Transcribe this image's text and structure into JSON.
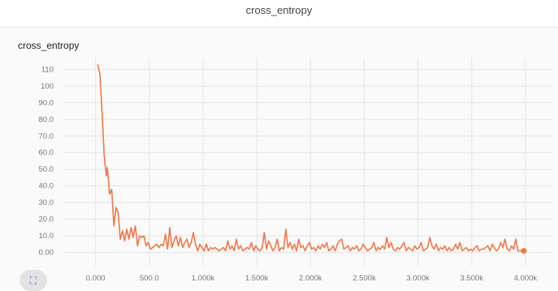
{
  "header": {
    "title": "cross_entropy"
  },
  "card": {
    "title": "cross_entropy",
    "expand_icon": "fullscreen-icon"
  },
  "chart_data": {
    "type": "line",
    "title": "cross_entropy",
    "xlabel": "",
    "ylabel": "",
    "xlim": [
      -300,
      4250
    ],
    "ylim": [
      -8,
      117
    ],
    "grid": true,
    "line_color": "#f0784a",
    "y_ticks": [
      {
        "value": 0,
        "label": "0.00"
      },
      {
        "value": 10,
        "label": "10.0"
      },
      {
        "value": 20,
        "label": "20.0"
      },
      {
        "value": 30,
        "label": "30.0"
      },
      {
        "value": 40,
        "label": "40.0"
      },
      {
        "value": 50,
        "label": "50.0"
      },
      {
        "value": 60,
        "label": "60.0"
      },
      {
        "value": 70,
        "label": "70.0"
      },
      {
        "value": 80,
        "label": "80.0"
      },
      {
        "value": 90,
        "label": "90.0"
      },
      {
        "value": 100,
        "label": "100"
      },
      {
        "value": 110,
        "label": "110"
      }
    ],
    "x_ticks": [
      {
        "value": 0,
        "label": "0.000"
      },
      {
        "value": 500,
        "label": "500.0"
      },
      {
        "value": 1000,
        "label": "1.000k"
      },
      {
        "value": 1500,
        "label": "1.500k"
      },
      {
        "value": 2000,
        "label": "2.000k"
      },
      {
        "value": 2500,
        "label": "2.500k"
      },
      {
        "value": 3000,
        "label": "3.000k"
      },
      {
        "value": 3500,
        "label": "3.500k"
      },
      {
        "value": 4000,
        "label": "4.000k"
      }
    ],
    "series": [
      {
        "x": [
          20,
          40,
          60,
          80,
          100,
          110,
          130,
          150,
          170,
          190,
          210,
          230,
          250,
          270,
          290,
          310,
          330,
          350,
          370,
          390,
          410,
          430,
          450,
          470,
          490,
          510,
          530,
          550,
          570,
          590,
          610,
          630,
          650,
          670,
          690,
          710,
          730,
          750,
          770,
          790,
          810,
          830,
          850,
          870,
          890,
          910,
          930,
          950,
          970,
          990,
          1010,
          1030,
          1050,
          1070,
          1090,
          1110,
          1130,
          1150,
          1170,
          1190,
          1210,
          1230,
          1250,
          1270,
          1290,
          1310,
          1330,
          1350,
          1370,
          1390,
          1410,
          1430,
          1450,
          1470,
          1490,
          1510,
          1530,
          1550,
          1570,
          1590,
          1610,
          1630,
          1650,
          1670,
          1690,
          1710,
          1730,
          1750,
          1770,
          1790,
          1810,
          1830,
          1850,
          1870,
          1890,
          1910,
          1930,
          1950,
          1970,
          1990,
          2010,
          2030,
          2050,
          2070,
          2090,
          2110,
          2130,
          2150,
          2170,
          2190,
          2210,
          2230,
          2250,
          2270,
          2290,
          2310,
          2330,
          2350,
          2370,
          2390,
          2410,
          2430,
          2450,
          2470,
          2490,
          2510,
          2530,
          2550,
          2570,
          2590,
          2610,
          2630,
          2650,
          2670,
          2690,
          2710,
          2730,
          2750,
          2770,
          2790,
          2810,
          2830,
          2850,
          2870,
          2890,
          2910,
          2930,
          2950,
          2970,
          2990,
          3010,
          3030,
          3050,
          3070,
          3090,
          3110,
          3130,
          3150,
          3170,
          3190,
          3210,
          3230,
          3250,
          3270,
          3290,
          3310,
          3330,
          3350,
          3370,
          3390,
          3410,
          3430,
          3450,
          3470,
          3490,
          3510,
          3530,
          3550,
          3570,
          3590,
          3610,
          3630,
          3650,
          3670,
          3690,
          3710,
          3730,
          3750,
          3770,
          3790,
          3810,
          3830,
          3850,
          3870,
          3890,
          3910,
          3930,
          3950,
          3970,
          3985
        ],
        "y": [
          113,
          107,
          85,
          58,
          46,
          51,
          35,
          38,
          16,
          27,
          24,
          8,
          13,
          7,
          14,
          8,
          15,
          9,
          16,
          4,
          10,
          9,
          10,
          4,
          6,
          2,
          3,
          4,
          5,
          3,
          5,
          4,
          11,
          2,
          15,
          3,
          7,
          10,
          4,
          9,
          3,
          6,
          8,
          3,
          6,
          12,
          5,
          1,
          5,
          3,
          1,
          5,
          1,
          3,
          2,
          3,
          2,
          1,
          2,
          3,
          1,
          7,
          2,
          4,
          1,
          8,
          2,
          4,
          1,
          2,
          3,
          2,
          6,
          1,
          4,
          2,
          1,
          3,
          12,
          2,
          7,
          4,
          1,
          3,
          8,
          1,
          3,
          2,
          14,
          3,
          6,
          2,
          5,
          1,
          8,
          3,
          4,
          1,
          4,
          6,
          2,
          3,
          1,
          4,
          2,
          5,
          3,
          6,
          1,
          2,
          4,
          1,
          5,
          7,
          8,
          2,
          3,
          4,
          1,
          3,
          2,
          4,
          1,
          2,
          5,
          3,
          1,
          2,
          3,
          6,
          1,
          3,
          2,
          4,
          2,
          9,
          3,
          6,
          2,
          1,
          3,
          2,
          4,
          6,
          1,
          3,
          2,
          1,
          4,
          2,
          3,
          6,
          1,
          2,
          3,
          9,
          4,
          2,
          5,
          1,
          3,
          2,
          4,
          1,
          3,
          1,
          2,
          5,
          2,
          6,
          1,
          2,
          3,
          1,
          2,
          1,
          3,
          4,
          1,
          2,
          2,
          3,
          4,
          1,
          5,
          3,
          1,
          2,
          6,
          3,
          8,
          2,
          1,
          4,
          2,
          8,
          1,
          1,
          1,
          1
        ]
      }
    ]
  }
}
